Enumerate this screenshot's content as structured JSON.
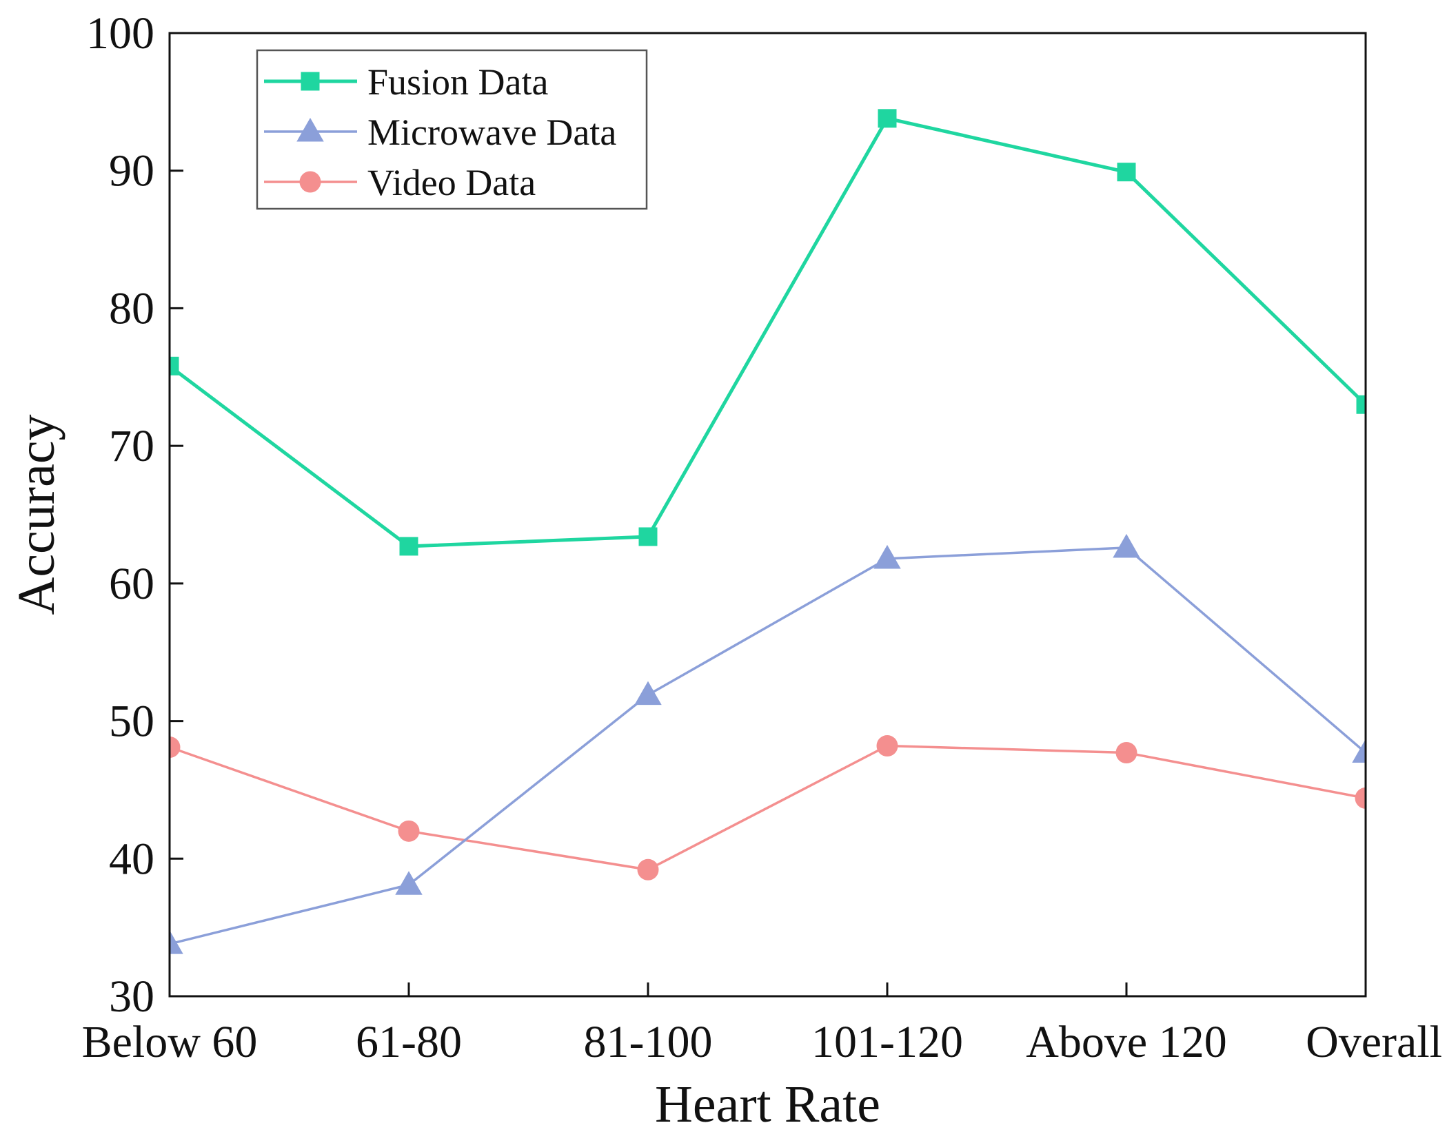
{
  "chart_data": {
    "type": "line",
    "title": "",
    "xlabel": "Heart Rate",
    "ylabel": "Accuracy",
    "categories": [
      "Below 60",
      "61-80",
      "81-100",
      "101-120",
      "Above 120",
      "Overall"
    ],
    "ylim": [
      30,
      100
    ],
    "yticks": [
      30,
      40,
      50,
      60,
      70,
      80,
      90,
      100
    ],
    "grid": false,
    "legend_position": "top-left",
    "series": [
      {
        "name": "Fusion Data",
        "marker": "square",
        "color": "#1fd6a0",
        "values": [
          75.8,
          62.7,
          63.4,
          93.8,
          89.9,
          73.0
        ]
      },
      {
        "name": "Microwave Data",
        "marker": "triangle",
        "color": "#8b9fd9",
        "values": [
          33.8,
          38.1,
          51.9,
          61.8,
          62.6,
          47.7
        ]
      },
      {
        "name": "Video Data",
        "marker": "circle",
        "color": "#f48f8f",
        "values": [
          48.1,
          42.0,
          39.2,
          48.2,
          47.7,
          44.4
        ]
      }
    ]
  }
}
